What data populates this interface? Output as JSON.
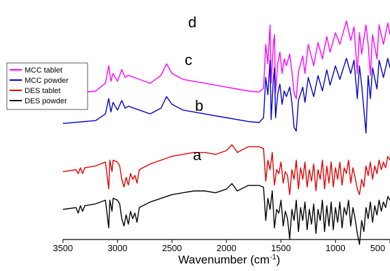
{
  "chart_data": {
    "type": "line",
    "xlabel": "Wavenumber (cm",
    "xlabel_sup": "-1",
    "xlabel_close": ")",
    "xlim": [
      3500,
      500
    ],
    "x_reversed": true,
    "grid": false,
    "legend_position": "left",
    "x_ticks": [
      3500,
      3000,
      2500,
      2000,
      1500,
      1000,
      500
    ],
    "tick_labels": [
      "3500",
      "3000",
      "2500",
      "2000",
      "1500",
      "1000",
      "500"
    ],
    "series": [
      {
        "name": "MCC tablet",
        "color": "#ff00ff",
        "label": "d",
        "points": [
          [
            3500,
            92
          ],
          [
            3200,
            88
          ],
          [
            3110,
            80
          ],
          [
            3080,
            62
          ],
          [
            3060,
            78
          ],
          [
            3040,
            70
          ],
          [
            3000,
            78
          ],
          [
            2960,
            66
          ],
          [
            2930,
            74
          ],
          [
            2900,
            72
          ],
          [
            2800,
            76
          ],
          [
            2700,
            80
          ],
          [
            2600,
            72
          ],
          [
            2550,
            60
          ],
          [
            2500,
            70
          ],
          [
            2400,
            76
          ],
          [
            2200,
            80
          ],
          [
            2000,
            84
          ],
          [
            1800,
            88
          ],
          [
            1700,
            89
          ],
          [
            1660,
            85
          ],
          [
            1640,
            40
          ],
          [
            1620,
            60
          ],
          [
            1600,
            20
          ],
          [
            1590,
            80
          ],
          [
            1570,
            40
          ],
          [
            1560,
            30
          ],
          [
            1550,
            90
          ],
          [
            1530,
            60
          ],
          [
            1510,
            48
          ],
          [
            1490,
            70
          ],
          [
            1470,
            55
          ],
          [
            1450,
            62
          ],
          [
            1420,
            50
          ],
          [
            1400,
            68
          ],
          [
            1380,
            90
          ],
          [
            1360,
            96
          ],
          [
            1340,
            68
          ],
          [
            1300,
            52
          ],
          [
            1280,
            70
          ],
          [
            1250,
            40
          ],
          [
            1200,
            62
          ],
          [
            1160,
            38
          ],
          [
            1120,
            55
          ],
          [
            1080,
            32
          ],
          [
            1050,
            48
          ],
          [
            1000,
            28
          ],
          [
            960,
            40
          ],
          [
            900,
            16
          ],
          [
            860,
            36
          ],
          [
            830,
            22
          ],
          [
            800,
            70
          ],
          [
            780,
            28
          ],
          [
            760,
            50
          ],
          [
            720,
            20
          ],
          [
            700,
            40
          ],
          [
            680,
            72
          ],
          [
            660,
            30
          ],
          [
            620,
            55
          ],
          [
            600,
            20
          ],
          [
            560,
            40
          ],
          [
            520,
            18
          ],
          [
            500,
            30
          ]
        ]
      },
      {
        "name": "MCC powder",
        "color": "#0000c8",
        "label": "c",
        "points": [
          [
            3500,
            86
          ],
          [
            3200,
            83
          ],
          [
            3110,
            76
          ],
          [
            3080,
            60
          ],
          [
            3060,
            74
          ],
          [
            3040,
            64
          ],
          [
            3000,
            72
          ],
          [
            2960,
            62
          ],
          [
            2930,
            70
          ],
          [
            2900,
            68
          ],
          [
            2800,
            72
          ],
          [
            2700,
            76
          ],
          [
            2600,
            70
          ],
          [
            2550,
            58
          ],
          [
            2500,
            66
          ],
          [
            2400,
            72
          ],
          [
            2200,
            76
          ],
          [
            2000,
            80
          ],
          [
            1800,
            84
          ],
          [
            1700,
            85
          ],
          [
            1660,
            80
          ],
          [
            1640,
            38
          ],
          [
            1620,
            56
          ],
          [
            1600,
            20
          ],
          [
            1590,
            82
          ],
          [
            1570,
            40
          ],
          [
            1560,
            28
          ],
          [
            1550,
            80
          ],
          [
            1530,
            55
          ],
          [
            1510,
            45
          ],
          [
            1490,
            66
          ],
          [
            1470,
            52
          ],
          [
            1450,
            58
          ],
          [
            1420,
            48
          ],
          [
            1400,
            64
          ],
          [
            1380,
            90
          ],
          [
            1360,
            94
          ],
          [
            1340,
            62
          ],
          [
            1300,
            48
          ],
          [
            1280,
            64
          ],
          [
            1250,
            38
          ],
          [
            1200,
            58
          ],
          [
            1160,
            36
          ],
          [
            1120,
            52
          ],
          [
            1080,
            30
          ],
          [
            1050,
            46
          ],
          [
            1000,
            26
          ],
          [
            960,
            40
          ],
          [
            900,
            18
          ],
          [
            860,
            34
          ],
          [
            830,
            20
          ],
          [
            800,
            60
          ],
          [
            780,
            26
          ],
          [
            760,
            46
          ],
          [
            720,
            96
          ],
          [
            700,
            36
          ],
          [
            680,
            60
          ],
          [
            660,
            28
          ],
          [
            620,
            50
          ],
          [
            600,
            20
          ],
          [
            560,
            38
          ],
          [
            520,
            18
          ],
          [
            500,
            28
          ]
        ]
      },
      {
        "name": "DES tablet",
        "color": "#e00000",
        "label": "b",
        "points": [
          [
            3500,
            72
          ],
          [
            3380,
            70
          ],
          [
            3360,
            74
          ],
          [
            3340,
            68
          ],
          [
            3320,
            74
          ],
          [
            3300,
            68
          ],
          [
            3200,
            66
          ],
          [
            3110,
            62
          ],
          [
            3080,
            90
          ],
          [
            3070,
            60
          ],
          [
            3050,
            72
          ],
          [
            3040,
            60
          ],
          [
            3000,
            62
          ],
          [
            2980,
            66
          ],
          [
            2960,
            80
          ],
          [
            2940,
            88
          ],
          [
            2920,
            78
          ],
          [
            2900,
            86
          ],
          [
            2880,
            74
          ],
          [
            2860,
            80
          ],
          [
            2840,
            76
          ],
          [
            2820,
            84
          ],
          [
            2800,
            70
          ],
          [
            2700,
            64
          ],
          [
            2600,
            60
          ],
          [
            2500,
            56
          ],
          [
            2400,
            54
          ],
          [
            2300,
            52
          ],
          [
            2200,
            52
          ],
          [
            2100,
            54
          ],
          [
            2000,
            50
          ],
          [
            1950,
            44
          ],
          [
            1900,
            52
          ],
          [
            1800,
            46
          ],
          [
            1700,
            46
          ],
          [
            1660,
            48
          ],
          [
            1640,
            82
          ],
          [
            1620,
            60
          ],
          [
            1600,
            70
          ],
          [
            1580,
            52
          ],
          [
            1560,
            86
          ],
          [
            1540,
            70
          ],
          [
            1520,
            74
          ],
          [
            1500,
            62
          ],
          [
            1480,
            84
          ],
          [
            1460,
            72
          ],
          [
            1440,
            76
          ],
          [
            1420,
            96
          ],
          [
            1400,
            70
          ],
          [
            1380,
            80
          ],
          [
            1360,
            60
          ],
          [
            1340,
            90
          ],
          [
            1320,
            68
          ],
          [
            1300,
            80
          ],
          [
            1280,
            62
          ],
          [
            1260,
            88
          ],
          [
            1240,
            70
          ],
          [
            1220,
            82
          ],
          [
            1200,
            64
          ],
          [
            1180,
            92
          ],
          [
            1160,
            70
          ],
          [
            1140,
            80
          ],
          [
            1120,
            60
          ],
          [
            1100,
            90
          ],
          [
            1080,
            66
          ],
          [
            1060,
            84
          ],
          [
            1040,
            62
          ],
          [
            1020,
            88
          ],
          [
            1000,
            68
          ],
          [
            980,
            80
          ],
          [
            960,
            62
          ],
          [
            940,
            86
          ],
          [
            920,
            68
          ],
          [
            900,
            74
          ],
          [
            880,
            60
          ],
          [
            860,
            84
          ],
          [
            840,
            68
          ],
          [
            820,
            78
          ],
          [
            800,
            90
          ],
          [
            780,
            96
          ],
          [
            760,
            80
          ],
          [
            740,
            88
          ],
          [
            720,
            66
          ],
          [
            700,
            76
          ],
          [
            680,
            62
          ],
          [
            660,
            80
          ],
          [
            640,
            66
          ],
          [
            620,
            74
          ],
          [
            600,
            60
          ],
          [
            580,
            70
          ],
          [
            560,
            62
          ],
          [
            540,
            68
          ],
          [
            520,
            56
          ],
          [
            500,
            60
          ]
        ]
      },
      {
        "name": "DES powder",
        "color": "#000000",
        "label": "a",
        "points": [
          [
            3500,
            60
          ],
          [
            3380,
            58
          ],
          [
            3360,
            64
          ],
          [
            3340,
            56
          ],
          [
            3320,
            62
          ],
          [
            3300,
            56
          ],
          [
            3200,
            54
          ],
          [
            3110,
            50
          ],
          [
            3080,
            80
          ],
          [
            3070,
            50
          ],
          [
            3050,
            62
          ],
          [
            3040,
            48
          ],
          [
            3000,
            50
          ],
          [
            2980,
            54
          ],
          [
            2960,
            70
          ],
          [
            2940,
            78
          ],
          [
            2920,
            66
          ],
          [
            2900,
            76
          ],
          [
            2880,
            62
          ],
          [
            2860,
            70
          ],
          [
            2840,
            64
          ],
          [
            2820,
            74
          ],
          [
            2800,
            58
          ],
          [
            2700,
            52
          ],
          [
            2600,
            48
          ],
          [
            2500,
            44
          ],
          [
            2400,
            42
          ],
          [
            2300,
            40
          ],
          [
            2200,
            40
          ],
          [
            2100,
            42
          ],
          [
            2000,
            38
          ],
          [
            1950,
            32
          ],
          [
            1900,
            40
          ],
          [
            1800,
            34
          ],
          [
            1700,
            34
          ],
          [
            1660,
            36
          ],
          [
            1640,
            72
          ],
          [
            1620,
            48
          ],
          [
            1600,
            60
          ],
          [
            1580,
            40
          ],
          [
            1560,
            80
          ],
          [
            1540,
            60
          ],
          [
            1520,
            64
          ],
          [
            1500,
            50
          ],
          [
            1480,
            78
          ],
          [
            1460,
            62
          ],
          [
            1440,
            70
          ],
          [
            1420,
            92
          ],
          [
            1400,
            60
          ],
          [
            1380,
            72
          ],
          [
            1360,
            50
          ],
          [
            1340,
            84
          ],
          [
            1320,
            58
          ],
          [
            1300,
            72
          ],
          [
            1280,
            52
          ],
          [
            1260,
            82
          ],
          [
            1240,
            60
          ],
          [
            1220,
            76
          ],
          [
            1200,
            54
          ],
          [
            1180,
            86
          ],
          [
            1160,
            60
          ],
          [
            1140,
            72
          ],
          [
            1120,
            50
          ],
          [
            1100,
            84
          ],
          [
            1080,
            56
          ],
          [
            1060,
            78
          ],
          [
            1040,
            52
          ],
          [
            1020,
            82
          ],
          [
            1000,
            58
          ],
          [
            980,
            74
          ],
          [
            960,
            52
          ],
          [
            940,
            80
          ],
          [
            920,
            58
          ],
          [
            900,
            66
          ],
          [
            880,
            50
          ],
          [
            860,
            78
          ],
          [
            840,
            58
          ],
          [
            820,
            70
          ],
          [
            800,
            86
          ],
          [
            780,
            98
          ],
          [
            760,
            72
          ],
          [
            740,
            84
          ],
          [
            720,
            58
          ],
          [
            700,
            70
          ],
          [
            680,
            52
          ],
          [
            660,
            74
          ],
          [
            640,
            56
          ],
          [
            620,
            66
          ],
          [
            600,
            50
          ],
          [
            580,
            62
          ],
          [
            560,
            52
          ],
          [
            540,
            58
          ],
          [
            520,
            46
          ],
          [
            500,
            50
          ]
        ]
      }
    ]
  },
  "series_offsets_note": ""
}
